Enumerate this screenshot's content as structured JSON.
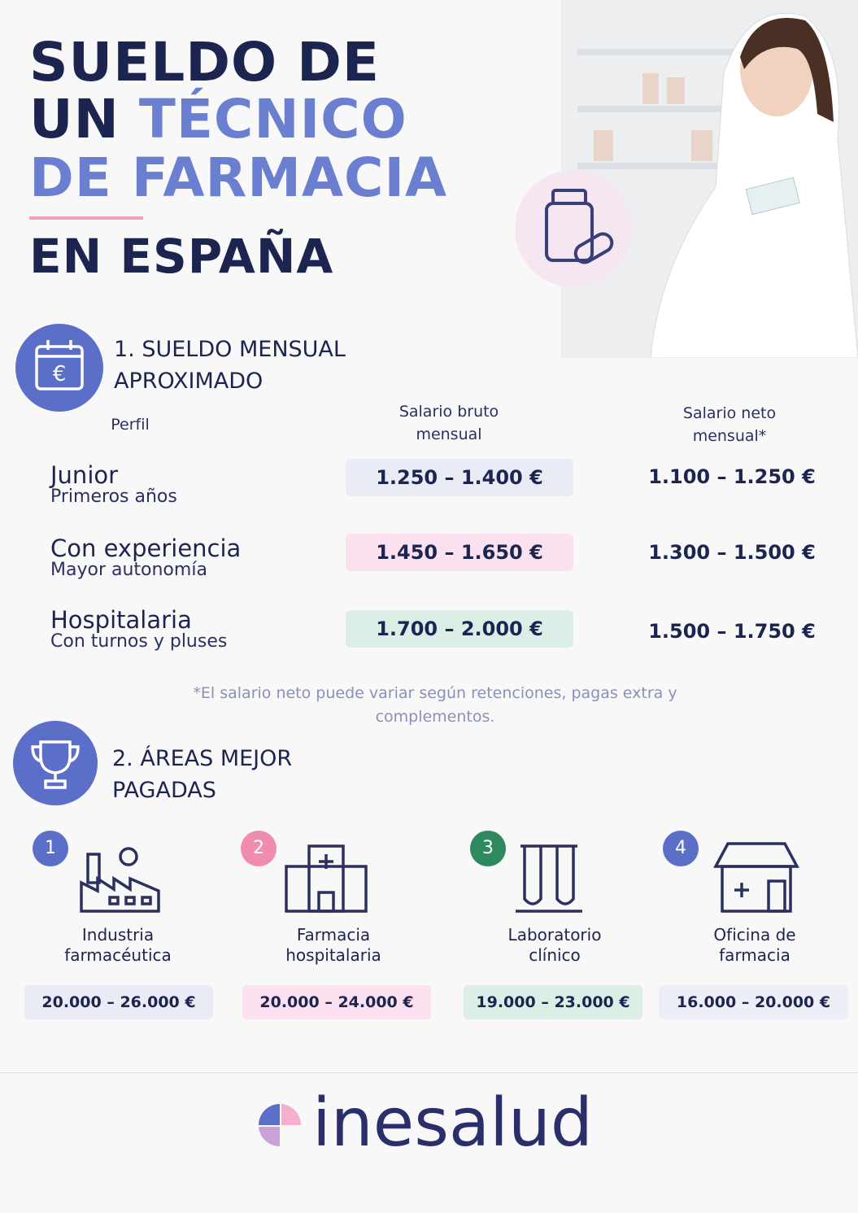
{
  "header": {
    "title": {
      "line1": "SUELDO DE",
      "line2_dark": "UN",
      "line2_accent": "TÉCNICO",
      "line3": "DE FARMACIA",
      "line4": "EN ESPAÑA"
    }
  },
  "section1": {
    "title_lines": [
      "1. SUELDO MENSUAL",
      "APROXIMADO"
    ],
    "columns": [
      "Perfil",
      "Salario bruto mensual",
      "Salario neto mensual*"
    ],
    "rows": [
      {
        "profile": "Junior",
        "detail": "Primeros años",
        "gross": "1.250 – 1.400 €",
        "net": "1.100 – 1.250 €"
      },
      {
        "profile": "Con experiencia",
        "detail": "Mayor autonomía",
        "gross": "1.450 – 1.650 €",
        "net": "1.300 – 1.500 €"
      },
      {
        "profile": "Hospitalaria",
        "detail": "Con turnos y pluses",
        "gross": "1.700 – 2.000 €",
        "net": "1.500 – 1.750 €"
      }
    ],
    "note": "*El salario neto puede variar según retenciones, pagas extra y complementos."
  },
  "section2": {
    "title_lines": [
      "2. ÁREAS MEJOR",
      "PAGADAS"
    ],
    "areas": [
      {
        "number": "1",
        "name": [
          "Industria",
          "farmacéutica"
        ],
        "range": "20.000 – 26.000 €"
      },
      {
        "number": "2",
        "name": [
          "Farmacia",
          "hospitalaria"
        ],
        "range": "20.000 – 24.000 €"
      },
      {
        "number": "3",
        "name": [
          "Laboratorio",
          "clínico"
        ],
        "range": "19.000 – 23.000 €"
      },
      {
        "number": "4",
        "name": [
          "Oficina de",
          "farmacia"
        ],
        "range": "16.000 – 20.000 €"
      }
    ]
  },
  "footer": {
    "logo": "inesalud"
  }
}
